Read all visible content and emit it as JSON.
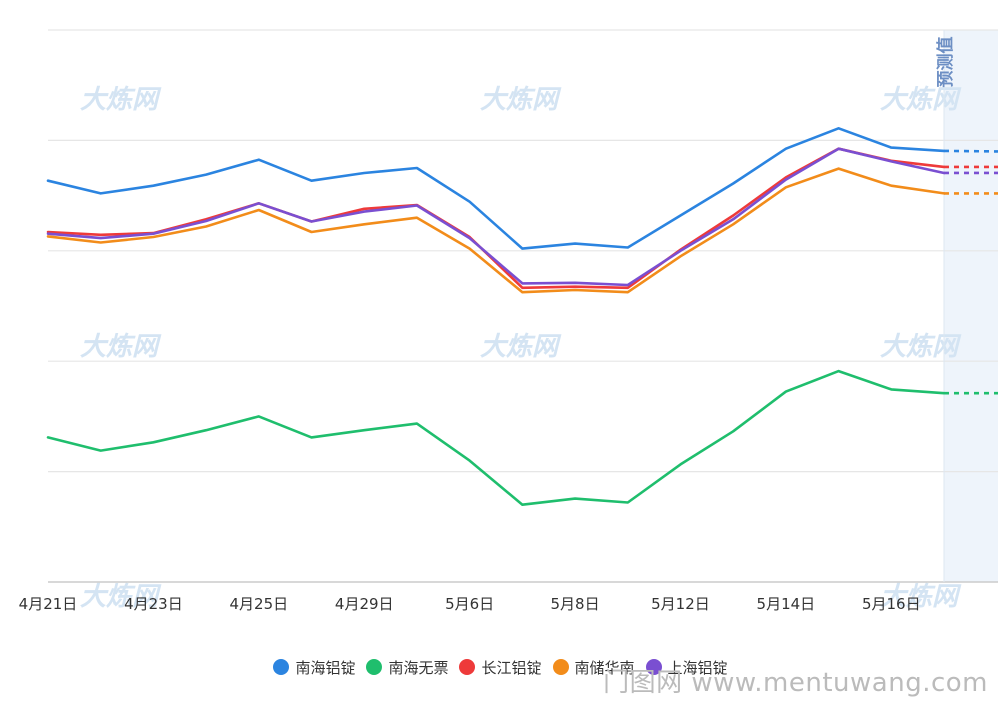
{
  "chart_data": {
    "type": "line",
    "title": "",
    "xlabel": "",
    "ylabel": "",
    "ylim": [
      0,
      100
    ],
    "grid": true,
    "legend_position": "bottom-center",
    "x_tick_labels": [
      "4月21日",
      "4月23日",
      "4月25日",
      "4月29日",
      "5月6日",
      "5月8日",
      "5月12日",
      "5月14日",
      "5月16日"
    ],
    "x_tick_index": [
      0,
      2,
      4,
      6,
      8,
      10,
      12,
      14,
      16
    ],
    "forecast_label": "预测值",
    "series": [
      {
        "name": "南海铝锭",
        "color": "#2b84e0",
        "values": [
          72.7,
          70.4,
          71.8,
          73.8,
          76.5,
          72.7,
          74.1,
          75.0,
          68.9,
          60.4,
          61.3,
          60.6,
          66.4,
          72.2,
          78.5,
          82.2,
          78.7,
          78.1
        ],
        "forecast": 78.0
      },
      {
        "name": "南海无票",
        "color": "#1fbe6d",
        "values": [
          26.2,
          23.8,
          25.3,
          27.5,
          30.0,
          26.2,
          27.5,
          28.7,
          22.0,
          14.0,
          15.1,
          14.4,
          21.3,
          27.3,
          34.5,
          38.2,
          34.9,
          34.2
        ],
        "forecast": 34.2
      },
      {
        "name": "长江铝锭",
        "color": "#ee3a3a",
        "values": [
          63.4,
          62.9,
          63.2,
          65.7,
          68.6,
          65.3,
          67.6,
          68.3,
          62.5,
          53.3,
          53.5,
          53.3,
          60.2,
          66.4,
          73.3,
          78.5,
          76.3,
          75.2
        ],
        "forecast": 75.2
      },
      {
        "name": "南储华南",
        "color": "#f28c1a",
        "values": [
          62.6,
          61.5,
          62.5,
          64.4,
          67.4,
          63.4,
          64.8,
          66.0,
          60.4,
          52.5,
          52.9,
          52.5,
          59.0,
          64.8,
          71.5,
          74.9,
          71.8,
          70.4
        ],
        "forecast": 70.4
      },
      {
        "name": "上海铝锭",
        "color": "#7a4fd1",
        "values": [
          63.1,
          62.3,
          63.1,
          65.4,
          68.6,
          65.3,
          67.1,
          68.2,
          62.3,
          54.1,
          54.2,
          53.8,
          60.0,
          65.7,
          72.9,
          78.5,
          76.2,
          74.1
        ],
        "forecast": 74.1
      }
    ]
  },
  "watermark": "大炼网",
  "source_text": "门图网 www.mentuwang.com"
}
